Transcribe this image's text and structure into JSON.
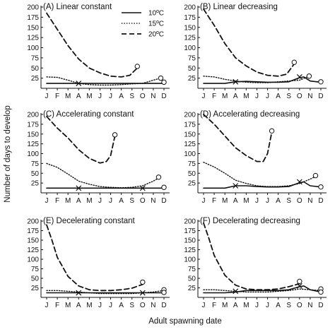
{
  "figure": {
    "xlabel": "Adult spawning date",
    "ylabel": "Number of days to develop",
    "months": [
      "J",
      "F",
      "M",
      "A",
      "M",
      "J",
      "J",
      "A",
      "S",
      "O",
      "N",
      "D"
    ],
    "yticks": [
      25,
      50,
      75,
      100,
      125,
      150,
      175,
      200
    ]
  },
  "legend": {
    "entries": [
      {
        "label": "10ºC",
        "style": "solid"
      },
      {
        "label": "15ºC",
        "style": "dotted"
      },
      {
        "label": "20ºC",
        "style": "dashed"
      }
    ]
  },
  "chart_data": [
    {
      "type": "line",
      "title": "(A) Linear constant",
      "ylim": [
        0,
        200
      ],
      "xunit": "month",
      "series": [
        {
          "name": "10ºC",
          "style": "solid",
          "points": [
            [
              1,
              12
            ],
            [
              2,
              12
            ],
            [
              3,
              12
            ],
            [
              4,
              12
            ],
            [
              5,
              12
            ],
            [
              6,
              12
            ],
            [
              7,
              12
            ],
            [
              8,
              12
            ],
            [
              9,
              12
            ],
            [
              10,
              12
            ],
            [
              11,
              12
            ],
            [
              12,
              12
            ]
          ],
          "end_marker": null
        },
        {
          "name": "15ºC",
          "style": "dotted",
          "points": [
            [
              1,
              28
            ],
            [
              2,
              27
            ],
            [
              3,
              20
            ],
            [
              4,
              12
            ],
            [
              5,
              9
            ],
            [
              6,
              8
            ],
            [
              7,
              8
            ],
            [
              8,
              9
            ],
            [
              9,
              11
            ],
            [
              10,
              12
            ],
            [
              11,
              20
            ],
            [
              11.7,
              25
            ]
          ],
          "end_marker": {
            "x": 11.7,
            "y": 25
          }
        },
        {
          "name": "20ºC",
          "style": "dashed",
          "points": [
            [
              1,
              185
            ],
            [
              2,
              145
            ],
            [
              3,
              105
            ],
            [
              4,
              72
            ],
            [
              5,
              50
            ],
            [
              6,
              38
            ],
            [
              7,
              30
            ],
            [
              8,
              28
            ],
            [
              8.8,
              32
            ],
            [
              9.5,
              50
            ]
          ],
          "end_marker": {
            "x": 9.5,
            "y": 54
          }
        }
      ],
      "cross_markers": [
        {
          "x": 4,
          "y": 12
        }
      ],
      "extra_markers": [
        {
          "x": 12,
          "y": 15
        }
      ]
    },
    {
      "type": "line",
      "title": "(B) Linear decreasing",
      "ylim": [
        0,
        200
      ],
      "xunit": "month",
      "series": [
        {
          "name": "10ºC",
          "style": "solid",
          "points": [
            [
              1,
              12
            ],
            [
              2,
              12
            ],
            [
              3,
              12
            ],
            [
              4,
              16
            ],
            [
              5,
              17
            ],
            [
              6,
              16
            ],
            [
              7,
              15
            ],
            [
              8,
              15
            ],
            [
              9,
              16
            ],
            [
              10,
              26
            ],
            [
              10.4,
              28
            ],
            [
              11,
              18
            ],
            [
              12,
              15
            ]
          ],
          "end_marker": null
        },
        {
          "name": "15ºC",
          "style": "dotted",
          "points": [
            [
              1,
              30
            ],
            [
              2,
              28
            ],
            [
              3,
              22
            ],
            [
              4,
              18
            ],
            [
              5,
              15
            ],
            [
              6,
              14
            ],
            [
              7,
              14
            ],
            [
              8,
              16
            ],
            [
              9,
              18
            ],
            [
              10,
              20
            ],
            [
              10.9,
              30
            ]
          ],
          "end_marker": {
            "x": 10.9,
            "y": 30
          }
        },
        {
          "name": "20ºC",
          "style": "dashed",
          "points": [
            [
              1,
              195
            ],
            [
              2,
              155
            ],
            [
              3,
              110
            ],
            [
              4,
              75
            ],
            [
              5,
              55
            ],
            [
              6,
              40
            ],
            [
              7,
              32
            ],
            [
              8,
              30
            ],
            [
              8.8,
              35
            ],
            [
              9.5,
              60
            ]
          ],
          "end_marker": {
            "x": 9.5,
            "y": 64
          }
        }
      ],
      "cross_markers": [
        {
          "x": 4,
          "y": 16
        },
        {
          "x": 10,
          "y": 28
        }
      ],
      "extra_markers": [
        {
          "x": 12,
          "y": 16
        }
      ]
    },
    {
      "type": "line",
      "title": "(C) Accelerating constant",
      "ylim": [
        0,
        200
      ],
      "xunit": "month",
      "series": [
        {
          "name": "10ºC",
          "style": "solid",
          "points": [
            [
              1,
              12
            ],
            [
              2,
              12
            ],
            [
              3,
              12
            ],
            [
              4,
              12
            ],
            [
              5,
              12
            ],
            [
              6,
              12
            ],
            [
              7,
              12
            ],
            [
              8,
              12
            ],
            [
              9,
              12
            ],
            [
              10,
              12
            ],
            [
              11,
              12
            ],
            [
              12,
              12
            ]
          ],
          "end_marker": null
        },
        {
          "name": "15ºC",
          "style": "dotted",
          "points": [
            [
              1,
              75
            ],
            [
              2,
              65
            ],
            [
              3,
              48
            ],
            [
              4,
              30
            ],
            [
              5,
              22
            ],
            [
              6,
              16
            ],
            [
              7,
              14
            ],
            [
              8,
              13
            ],
            [
              9,
              14
            ],
            [
              10,
              18
            ],
            [
              11,
              30
            ],
            [
              11.5,
              38
            ]
          ],
          "end_marker": {
            "x": 11.5,
            "y": 40
          }
        },
        {
          "name": "20ºC",
          "style": "dashed",
          "points": [
            [
              1,
              195
            ],
            [
              2,
              165
            ],
            [
              3,
              140
            ],
            [
              4,
              110
            ],
            [
              5,
              88
            ],
            [
              6,
              76
            ],
            [
              6.6,
              80
            ],
            [
              7,
              95
            ],
            [
              7.4,
              145
            ]
          ],
          "end_marker": {
            "x": 7.4,
            "y": 148
          }
        }
      ],
      "cross_markers": [
        {
          "x": 4,
          "y": 12
        },
        {
          "x": 10,
          "y": 12
        }
      ],
      "extra_markers": [
        {
          "x": 12,
          "y": 14
        }
      ]
    },
    {
      "type": "line",
      "title": "(D) Accelerating decreasing",
      "ylim": [
        0,
        200
      ],
      "xunit": "month",
      "series": [
        {
          "name": "10ºC",
          "style": "solid",
          "points": [
            [
              1,
              12
            ],
            [
              2,
              12
            ],
            [
              3,
              12
            ],
            [
              4,
              18
            ],
            [
              5,
              18
            ],
            [
              6,
              16
            ],
            [
              7,
              15
            ],
            [
              8,
              15
            ],
            [
              9,
              16
            ],
            [
              10,
              26
            ],
            [
              10.4,
              28
            ],
            [
              11,
              18
            ],
            [
              12,
              15
            ]
          ],
          "end_marker": null
        },
        {
          "name": "15ºC",
          "style": "dotted",
          "points": [
            [
              1,
              78
            ],
            [
              2,
              66
            ],
            [
              3,
              50
            ],
            [
              4,
              32
            ],
            [
              5,
              24
            ],
            [
              6,
              18
            ],
            [
              7,
              16
            ],
            [
              8,
              16
            ],
            [
              9,
              18
            ],
            [
              10,
              24
            ],
            [
              11,
              35
            ],
            [
              11.5,
              42
            ]
          ],
          "end_marker": {
            "x": 11.5,
            "y": 44
          }
        },
        {
          "name": "20ºC",
          "style": "dashed",
          "points": [
            [
              1,
              200
            ],
            [
              2,
              175
            ],
            [
              3,
              145
            ],
            [
              4,
              115
            ],
            [
              5,
              95
            ],
            [
              6,
              80
            ],
            [
              6.6,
              80
            ],
            [
              7,
              100
            ],
            [
              7.4,
              155
            ]
          ],
          "end_marker": {
            "x": 7.4,
            "y": 158
          }
        }
      ],
      "cross_markers": [
        {
          "x": 4,
          "y": 18
        },
        {
          "x": 10,
          "y": 28
        }
      ],
      "extra_markers": [
        {
          "x": 12,
          "y": 15
        }
      ]
    },
    {
      "type": "line",
      "title": "(E) Decelerating constant",
      "ylim": [
        0,
        200
      ],
      "xunit": "month",
      "series": [
        {
          "name": "10ºC",
          "style": "solid",
          "points": [
            [
              1,
              12
            ],
            [
              2,
              12
            ],
            [
              3,
              12
            ],
            [
              4,
              12
            ],
            [
              5,
              12
            ],
            [
              6,
              12
            ],
            [
              7,
              12
            ],
            [
              8,
              12
            ],
            [
              9,
              12
            ],
            [
              10,
              12
            ],
            [
              11,
              12
            ],
            [
              12,
              12
            ]
          ],
          "end_marker": null
        },
        {
          "name": "15ºC",
          "style": "dotted",
          "points": [
            [
              1,
              18
            ],
            [
              2,
              18
            ],
            [
              3,
              16
            ],
            [
              4,
              14
            ],
            [
              5,
              12
            ],
            [
              6,
              10
            ],
            [
              7,
              10
            ],
            [
              8,
              10
            ],
            [
              9,
              10
            ],
            [
              10,
              12
            ],
            [
              11,
              14
            ],
            [
              12,
              18
            ]
          ],
          "end_marker": {
            "x": 12,
            "y": 20
          }
        },
        {
          "name": "20ºC",
          "style": "dashed",
          "points": [
            [
              1,
              190
            ],
            [
              1.5,
              150
            ],
            [
              2,
              105
            ],
            [
              3,
              55
            ],
            [
              4,
              30
            ],
            [
              5,
              20
            ],
            [
              6,
              18
            ],
            [
              7,
              18
            ],
            [
              8,
              20
            ],
            [
              9,
              24
            ],
            [
              10,
              34
            ]
          ],
          "end_marker": {
            "x": 10,
            "y": 40
          }
        }
      ],
      "cross_markers": [
        {
          "x": 4,
          "y": 12
        },
        {
          "x": 10,
          "y": 12
        }
      ],
      "extra_markers": [
        {
          "x": 12,
          "y": 13
        }
      ]
    },
    {
      "type": "line",
      "title": "(F) Decelerating decreasing",
      "ylim": [
        0,
        200
      ],
      "xunit": "month",
      "series": [
        {
          "name": "10ºC",
          "style": "solid",
          "points": [
            [
              1,
              12
            ],
            [
              2,
              12
            ],
            [
              3,
              12
            ],
            [
              4,
              14
            ],
            [
              5,
              18
            ],
            [
              6,
              18
            ],
            [
              7,
              18
            ],
            [
              8,
              18
            ],
            [
              9,
              20
            ],
            [
              10,
              28
            ],
            [
              10.4,
              30
            ],
            [
              11,
              20
            ],
            [
              12,
              14
            ]
          ],
          "end_marker": null
        },
        {
          "name": "15ºC",
          "style": "dotted",
          "points": [
            [
              1,
              20
            ],
            [
              2,
              20
            ],
            [
              3,
              18
            ],
            [
              4,
              16
            ],
            [
              5,
              14
            ],
            [
              6,
              14
            ],
            [
              7,
              14
            ],
            [
              8,
              16
            ],
            [
              9,
              18
            ],
            [
              10,
              22
            ],
            [
              11,
              20
            ],
            [
              12,
              18
            ]
          ],
          "end_marker": {
            "x": 12,
            "y": 22
          }
        },
        {
          "name": "20ºC",
          "style": "dashed",
          "points": [
            [
              1,
              195
            ],
            [
              1.5,
              155
            ],
            [
              2,
              110
            ],
            [
              3,
              58
            ],
            [
              4,
              32
            ],
            [
              5,
              22
            ],
            [
              6,
              20
            ],
            [
              7,
              20
            ],
            [
              8,
              22
            ],
            [
              9,
              28
            ],
            [
              10,
              36
            ]
          ],
          "end_marker": {
            "x": 10,
            "y": 42
          }
        }
      ],
      "cross_markers": [
        {
          "x": 4,
          "y": 16
        },
        {
          "x": 10,
          "y": 30
        }
      ],
      "extra_markers": [
        {
          "x": 12,
          "y": 14
        }
      ]
    }
  ]
}
